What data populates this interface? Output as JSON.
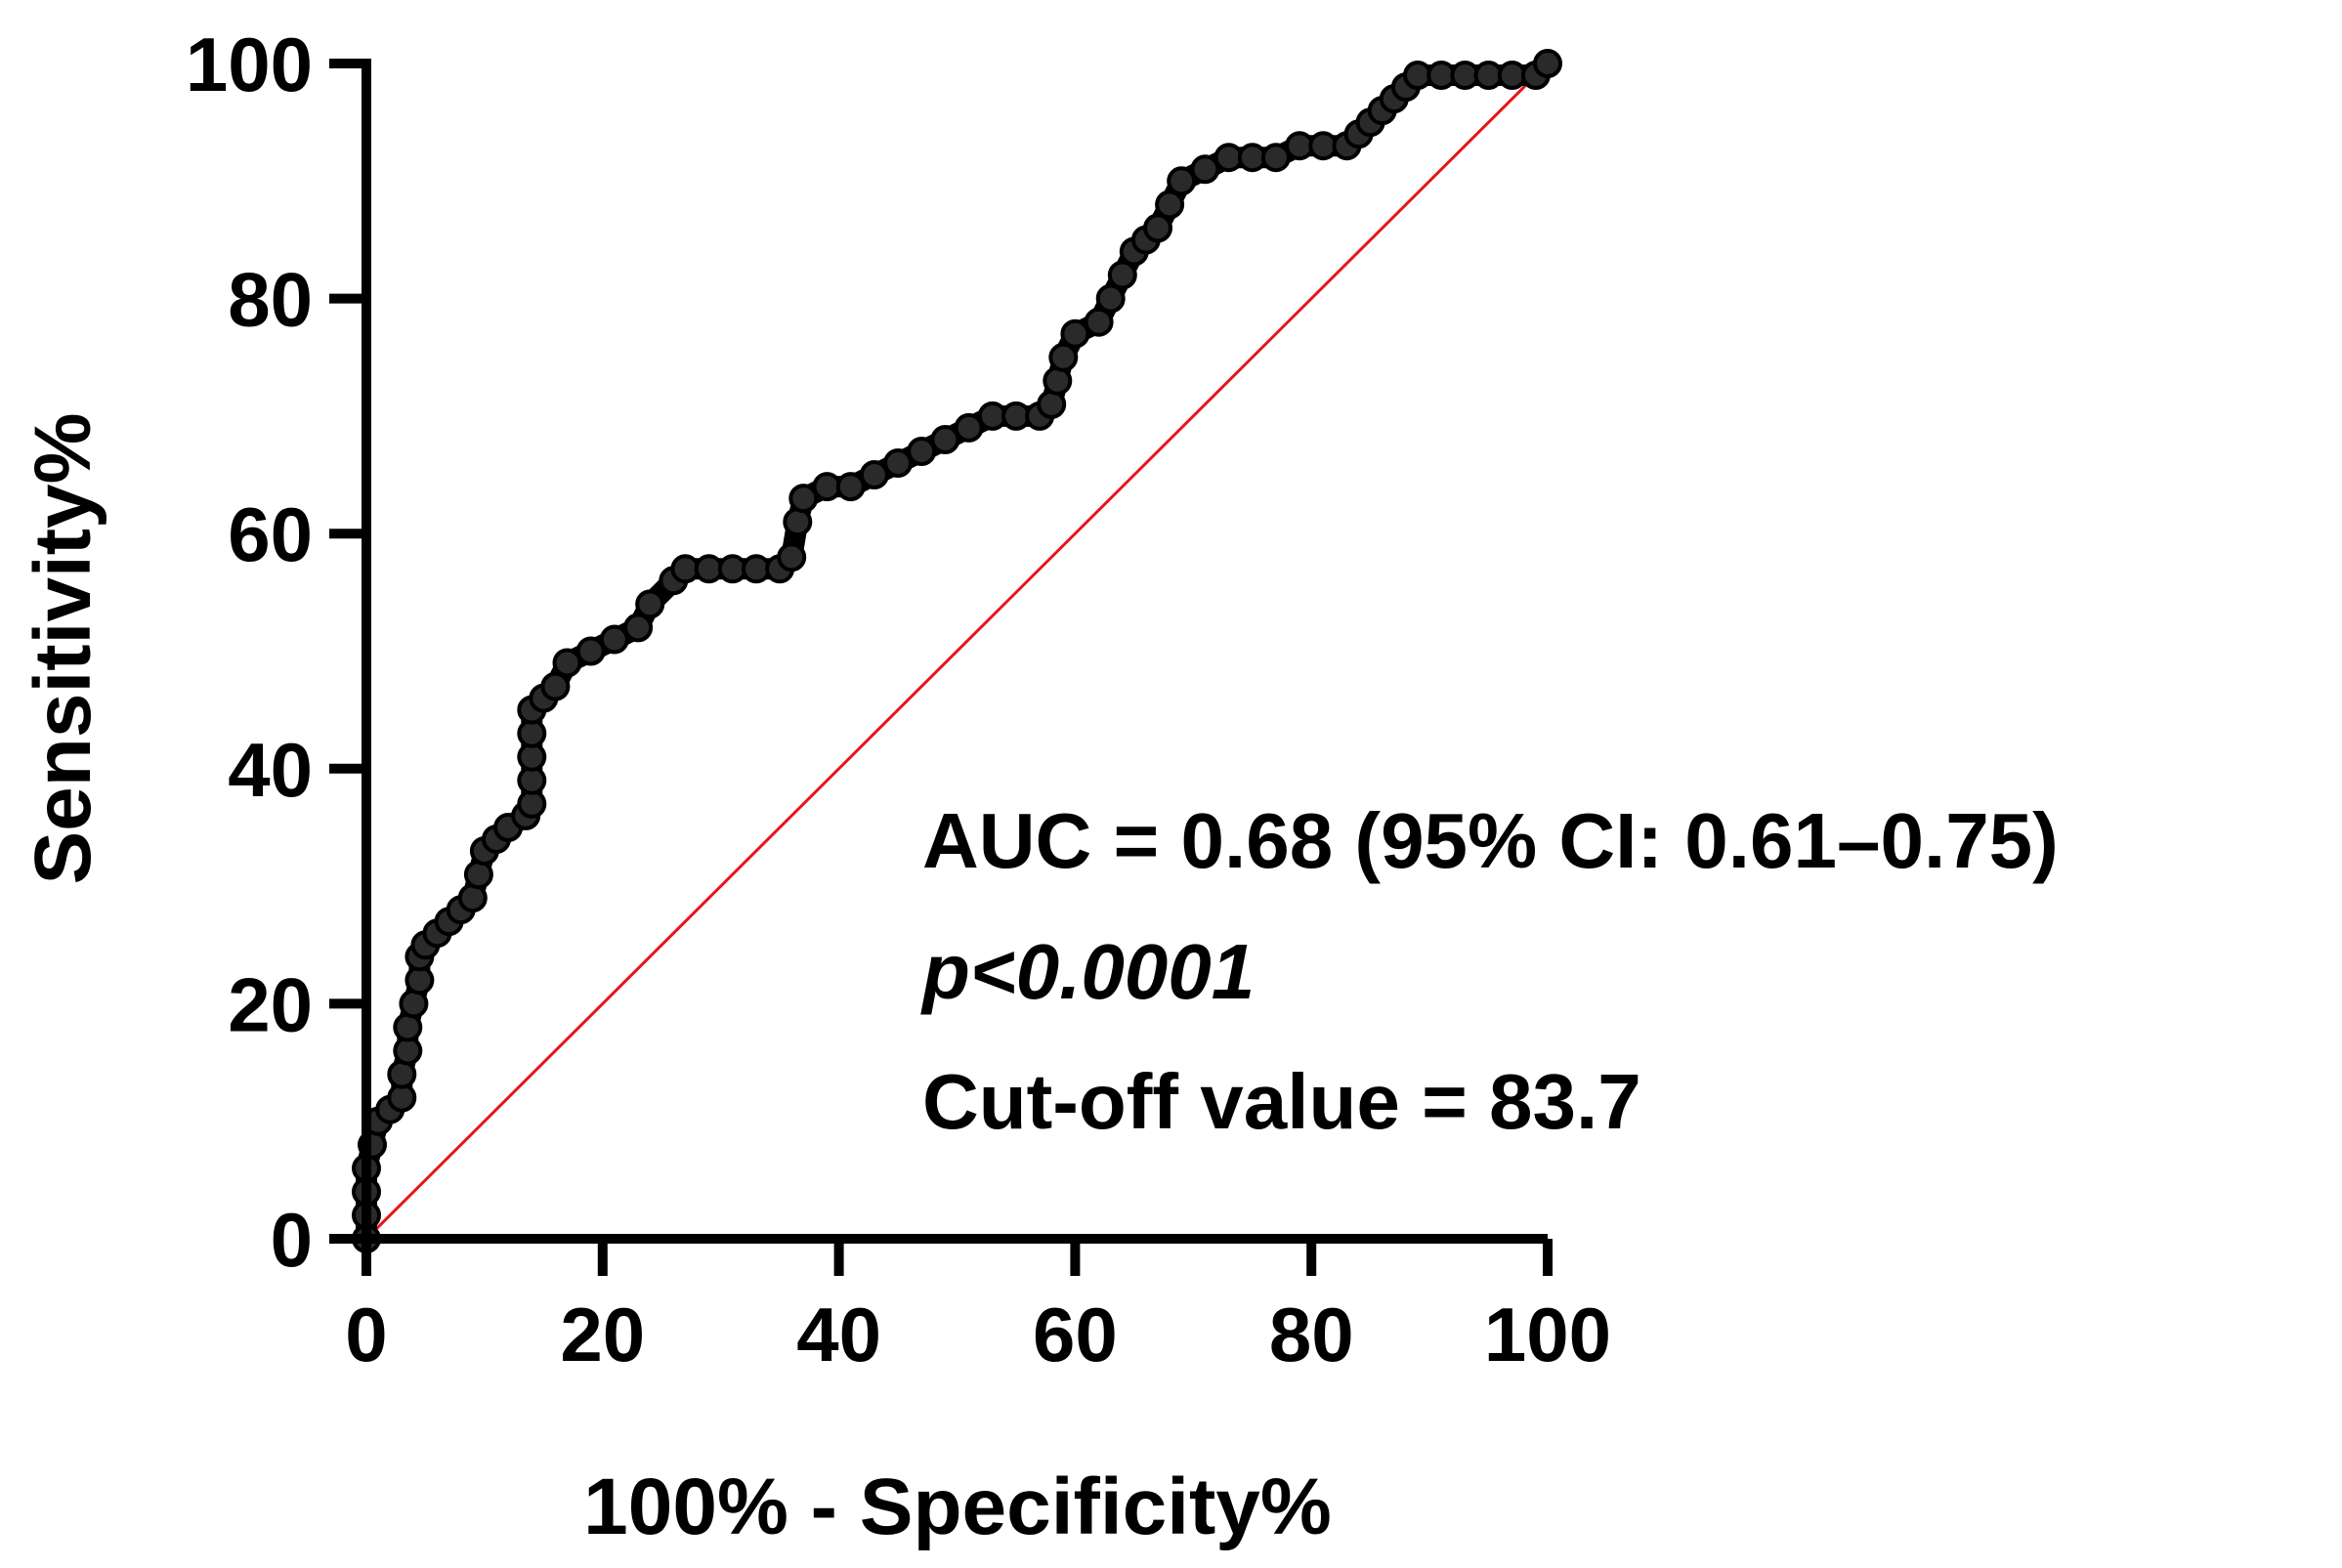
{
  "chart_data": {
    "type": "line",
    "xlabel": "100% - Specificity%",
    "ylabel": "Sensitivity%",
    "xlim": [
      0,
      100
    ],
    "ylim": [
      0,
      100
    ],
    "x_ticks": [
      "0",
      "20",
      "40",
      "60",
      "80",
      "100"
    ],
    "y_ticks": [
      "0",
      "20",
      "40",
      "60",
      "80",
      "100"
    ],
    "grid": false,
    "legend": "none",
    "annotations": {
      "auc": "AUC =  0.68 (95% CI: 0.61–0.75)",
      "p_prefix": "p",
      "p_value": "<0.0001",
      "cutoff": "Cut-off value = 83.7"
    },
    "series": [
      {
        "color": "#000000",
        "marker": "circle",
        "points": [
          [
            0,
            0
          ],
          [
            0,
            2
          ],
          [
            0,
            4
          ],
          [
            0,
            6
          ],
          [
            0.5,
            8
          ],
          [
            1,
            10
          ],
          [
            2,
            11
          ],
          [
            3,
            12
          ],
          [
            3,
            14
          ],
          [
            3.5,
            16
          ],
          [
            3.5,
            18
          ],
          [
            4,
            20
          ],
          [
            4.5,
            22
          ],
          [
            4.5,
            24
          ],
          [
            5,
            25
          ],
          [
            6,
            26
          ],
          [
            7,
            27
          ],
          [
            8,
            28
          ],
          [
            9,
            29
          ],
          [
            9.5,
            31
          ],
          [
            10,
            33
          ],
          [
            11,
            34
          ],
          [
            12,
            35
          ],
          [
            13.5,
            36
          ],
          [
            14,
            37
          ],
          [
            14,
            39
          ],
          [
            14,
            41
          ],
          [
            14,
            43
          ],
          [
            14,
            45
          ],
          [
            15,
            46
          ],
          [
            16,
            47
          ],
          [
            17,
            49
          ],
          [
            19,
            50
          ],
          [
            21,
            51
          ],
          [
            23,
            52
          ],
          [
            24,
            54
          ],
          [
            26,
            56
          ],
          [
            27,
            57
          ],
          [
            29,
            57
          ],
          [
            31,
            57
          ],
          [
            33,
            57
          ],
          [
            35,
            57
          ],
          [
            36,
            58
          ],
          [
            36.5,
            61
          ],
          [
            37,
            63
          ],
          [
            39,
            64
          ],
          [
            41,
            64
          ],
          [
            43,
            65
          ],
          [
            45,
            66
          ],
          [
            47,
            67
          ],
          [
            49,
            68
          ],
          [
            51,
            69
          ],
          [
            53,
            70
          ],
          [
            55,
            70
          ],
          [
            57,
            70
          ],
          [
            58,
            71
          ],
          [
            58.5,
            73
          ],
          [
            59,
            75
          ],
          [
            60,
            77
          ],
          [
            62,
            78
          ],
          [
            63,
            80
          ],
          [
            64,
            82
          ],
          [
            65,
            84
          ],
          [
            66,
            85
          ],
          [
            67,
            86
          ],
          [
            68,
            88
          ],
          [
            69,
            90
          ],
          [
            71,
            91
          ],
          [
            73,
            92
          ],
          [
            75,
            92
          ],
          [
            77,
            92
          ],
          [
            79,
            93
          ],
          [
            81,
            93
          ],
          [
            83,
            93
          ],
          [
            84,
            94
          ],
          [
            85,
            95
          ],
          [
            86,
            96
          ],
          [
            87,
            97
          ],
          [
            88,
            98
          ],
          [
            89,
            99
          ],
          [
            91,
            99
          ],
          [
            93,
            99
          ],
          [
            95,
            99
          ],
          [
            97,
            99
          ],
          [
            99,
            99
          ],
          [
            100,
            100
          ]
        ]
      },
      {
        "color": "#e8141c",
        "points": [
          [
            0,
            0
          ],
          [
            100,
            100
          ]
        ]
      }
    ]
  }
}
